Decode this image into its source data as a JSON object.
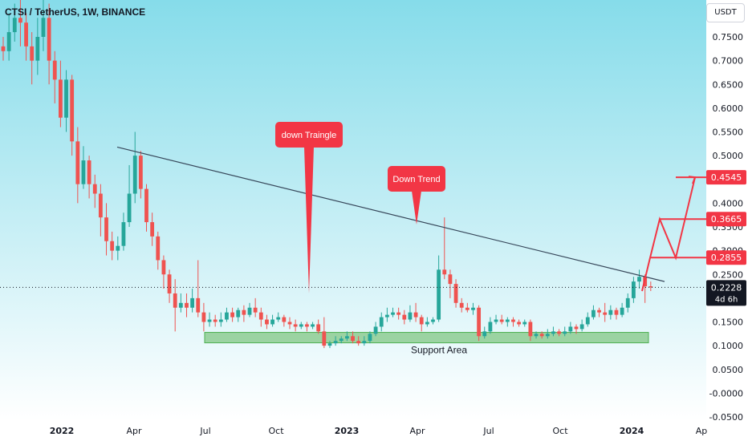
{
  "header": {
    "title": "CTSI / TetherUS, 1W, BINANCE",
    "currency_button": "USDT"
  },
  "colors": {
    "bg_top": "#86dcea",
    "bg_bottom": "#ffffff",
    "up": "#26a69a",
    "down": "#ef5350",
    "accent_red": "#f23645",
    "support_fill": "#81c784",
    "trendline": "#37475a"
  },
  "chart_data": {
    "type": "candlestick",
    "title": "CTSI / TetherUS, 1W, BINANCE",
    "ylim": [
      -0.05,
      0.8
    ],
    "y_ticks": [
      "0.7500",
      "0.7000",
      "0.6500",
      "0.6000",
      "0.5500",
      "0.5000",
      "0.4500",
      "0.4000",
      "0.3500",
      "0.3000",
      "0.2500",
      "0.2000",
      "0.1500",
      "0.1000",
      "0.0500",
      "-0.0000",
      "-0.0500"
    ],
    "y_tick_values": [
      0.75,
      0.7,
      0.65,
      0.6,
      0.55,
      0.5,
      0.45,
      0.4,
      0.35,
      0.3,
      0.25,
      0.2,
      0.15,
      0.1,
      0.05,
      0.0,
      -0.05
    ],
    "x_ticks": [
      "2022",
      "Apr",
      "Jul",
      "Oct",
      "2023",
      "Apr",
      "Jul",
      "Oct",
      "2024",
      "Ap"
    ],
    "x_tick_bold": [
      true,
      false,
      false,
      false,
      true,
      false,
      false,
      false,
      true,
      false
    ],
    "last_price": {
      "label": "0.2228",
      "value": 0.2228,
      "countdown": "4d 6h"
    },
    "targets": [
      {
        "label": "0.4545",
        "value": 0.4545
      },
      {
        "label": "0.3665",
        "value": 0.3665
      },
      {
        "label": "0.2855",
        "value": 0.2855
      }
    ],
    "support_zone": {
      "label": "Support Area",
      "low": 0.106,
      "high": 0.128
    },
    "trendline": {
      "start_value": 0.518,
      "end_value": 0.235
    },
    "annotations": [
      {
        "text": "down Traingle",
        "pointer_value": 0.21
      },
      {
        "text": "Down Trend",
        "pointer_value": 0.355
      }
    ],
    "projection": [
      0.215,
      0.285,
      0.3665,
      0.285,
      0.4545
    ],
    "candles": [
      [
        0.73,
        0.72,
        0.75,
        0.7
      ],
      [
        0.72,
        0.76,
        0.8,
        0.7
      ],
      [
        0.76,
        0.79,
        0.82,
        0.74
      ],
      [
        0.79,
        0.78,
        0.84,
        0.73
      ],
      [
        0.78,
        0.73,
        0.8,
        0.7
      ],
      [
        0.73,
        0.7,
        0.76,
        0.65
      ],
      [
        0.7,
        0.75,
        0.79,
        0.67
      ],
      [
        0.75,
        0.79,
        0.83,
        0.72
      ],
      [
        0.79,
        0.7,
        0.82,
        0.65
      ],
      [
        0.7,
        0.66,
        0.72,
        0.61
      ],
      [
        0.66,
        0.58,
        0.7,
        0.56
      ],
      [
        0.58,
        0.66,
        0.68,
        0.55
      ],
      [
        0.66,
        0.53,
        0.67,
        0.5
      ],
      [
        0.53,
        0.44,
        0.56,
        0.4
      ],
      [
        0.44,
        0.49,
        0.52,
        0.43
      ],
      [
        0.49,
        0.44,
        0.5,
        0.41
      ],
      [
        0.44,
        0.42,
        0.46,
        0.39
      ],
      [
        0.42,
        0.37,
        0.44,
        0.33
      ],
      [
        0.37,
        0.32,
        0.4,
        0.29
      ],
      [
        0.32,
        0.3,
        0.34,
        0.28
      ],
      [
        0.3,
        0.31,
        0.33,
        0.28
      ],
      [
        0.31,
        0.36,
        0.38,
        0.3
      ],
      [
        0.36,
        0.42,
        0.48,
        0.35
      ],
      [
        0.42,
        0.5,
        0.55,
        0.4
      ],
      [
        0.5,
        0.43,
        0.51,
        0.41
      ],
      [
        0.43,
        0.36,
        0.44,
        0.34
      ],
      [
        0.36,
        0.33,
        0.38,
        0.31
      ],
      [
        0.33,
        0.28,
        0.34,
        0.26
      ],
      [
        0.28,
        0.25,
        0.29,
        0.22
      ],
      [
        0.25,
        0.21,
        0.26,
        0.19
      ],
      [
        0.21,
        0.18,
        0.24,
        0.13
      ],
      [
        0.18,
        0.19,
        0.21,
        0.17
      ],
      [
        0.19,
        0.18,
        0.21,
        0.16
      ],
      [
        0.18,
        0.2,
        0.22,
        0.17
      ],
      [
        0.2,
        0.17,
        0.28,
        0.16
      ],
      [
        0.17,
        0.15,
        0.19,
        0.13
      ],
      [
        0.15,
        0.155,
        0.17,
        0.14
      ],
      [
        0.155,
        0.15,
        0.165,
        0.14
      ],
      [
        0.15,
        0.155,
        0.17,
        0.14
      ],
      [
        0.155,
        0.17,
        0.18,
        0.15
      ],
      [
        0.17,
        0.16,
        0.18,
        0.15
      ],
      [
        0.16,
        0.175,
        0.18,
        0.15
      ],
      [
        0.175,
        0.165,
        0.185,
        0.15
      ],
      [
        0.165,
        0.18,
        0.19,
        0.16
      ],
      [
        0.18,
        0.17,
        0.2,
        0.16
      ],
      [
        0.17,
        0.155,
        0.18,
        0.14
      ],
      [
        0.155,
        0.145,
        0.165,
        0.135
      ],
      [
        0.145,
        0.155,
        0.165,
        0.14
      ],
      [
        0.155,
        0.16,
        0.17,
        0.15
      ],
      [
        0.16,
        0.15,
        0.165,
        0.14
      ],
      [
        0.15,
        0.145,
        0.16,
        0.135
      ],
      [
        0.145,
        0.14,
        0.155,
        0.13
      ],
      [
        0.14,
        0.145,
        0.15,
        0.135
      ],
      [
        0.145,
        0.14,
        0.15,
        0.13
      ],
      [
        0.14,
        0.145,
        0.15,
        0.135
      ],
      [
        0.145,
        0.13,
        0.155,
        0.125
      ],
      [
        0.13,
        0.1,
        0.16,
        0.095
      ],
      [
        0.1,
        0.105,
        0.11,
        0.095
      ],
      [
        0.105,
        0.11,
        0.12,
        0.1
      ],
      [
        0.11,
        0.115,
        0.12,
        0.105
      ],
      [
        0.115,
        0.12,
        0.13,
        0.11
      ],
      [
        0.12,
        0.11,
        0.13,
        0.105
      ],
      [
        0.11,
        0.105,
        0.12,
        0.1
      ],
      [
        0.105,
        0.11,
        0.12,
        0.1
      ],
      [
        0.11,
        0.125,
        0.13,
        0.105
      ],
      [
        0.125,
        0.14,
        0.15,
        0.12
      ],
      [
        0.14,
        0.16,
        0.17,
        0.13
      ],
      [
        0.16,
        0.165,
        0.18,
        0.15
      ],
      [
        0.165,
        0.17,
        0.18,
        0.16
      ],
      [
        0.17,
        0.165,
        0.18,
        0.155
      ],
      [
        0.165,
        0.155,
        0.175,
        0.145
      ],
      [
        0.155,
        0.17,
        0.185,
        0.15
      ],
      [
        0.17,
        0.16,
        0.19,
        0.15
      ],
      [
        0.16,
        0.145,
        0.165,
        0.13
      ],
      [
        0.145,
        0.15,
        0.16,
        0.14
      ],
      [
        0.15,
        0.155,
        0.16,
        0.145
      ],
      [
        0.155,
        0.26,
        0.29,
        0.15
      ],
      [
        0.26,
        0.25,
        0.37,
        0.24
      ],
      [
        0.25,
        0.23,
        0.26,
        0.2
      ],
      [
        0.23,
        0.19,
        0.24,
        0.18
      ],
      [
        0.19,
        0.18,
        0.2,
        0.17
      ],
      [
        0.18,
        0.175,
        0.19,
        0.17
      ],
      [
        0.175,
        0.18,
        0.19,
        0.165
      ],
      [
        0.18,
        0.12,
        0.185,
        0.11
      ],
      [
        0.12,
        0.13,
        0.14,
        0.115
      ],
      [
        0.13,
        0.15,
        0.16,
        0.125
      ],
      [
        0.15,
        0.155,
        0.165,
        0.145
      ],
      [
        0.155,
        0.15,
        0.165,
        0.145
      ],
      [
        0.15,
        0.155,
        0.16,
        0.14
      ],
      [
        0.155,
        0.15,
        0.16,
        0.14
      ],
      [
        0.15,
        0.145,
        0.155,
        0.14
      ],
      [
        0.145,
        0.15,
        0.155,
        0.14
      ],
      [
        0.15,
        0.12,
        0.155,
        0.11
      ],
      [
        0.12,
        0.125,
        0.13,
        0.115
      ],
      [
        0.125,
        0.12,
        0.13,
        0.115
      ],
      [
        0.12,
        0.125,
        0.135,
        0.115
      ],
      [
        0.125,
        0.13,
        0.14,
        0.12
      ],
      [
        0.13,
        0.125,
        0.135,
        0.12
      ],
      [
        0.125,
        0.13,
        0.14,
        0.12
      ],
      [
        0.13,
        0.14,
        0.15,
        0.125
      ],
      [
        0.14,
        0.135,
        0.145,
        0.125
      ],
      [
        0.135,
        0.145,
        0.155,
        0.13
      ],
      [
        0.145,
        0.16,
        0.17,
        0.14
      ],
      [
        0.16,
        0.175,
        0.185,
        0.155
      ],
      [
        0.175,
        0.17,
        0.18,
        0.16
      ],
      [
        0.17,
        0.165,
        0.19,
        0.15
      ],
      [
        0.165,
        0.175,
        0.185,
        0.155
      ],
      [
        0.175,
        0.165,
        0.18,
        0.155
      ],
      [
        0.165,
        0.18,
        0.19,
        0.16
      ],
      [
        0.18,
        0.2,
        0.21,
        0.17
      ],
      [
        0.2,
        0.235,
        0.245,
        0.19
      ],
      [
        0.235,
        0.245,
        0.26,
        0.22
      ],
      [
        0.245,
        0.225,
        0.25,
        0.19
      ],
      [
        0.225,
        0.2228,
        0.235,
        0.215
      ]
    ]
  }
}
